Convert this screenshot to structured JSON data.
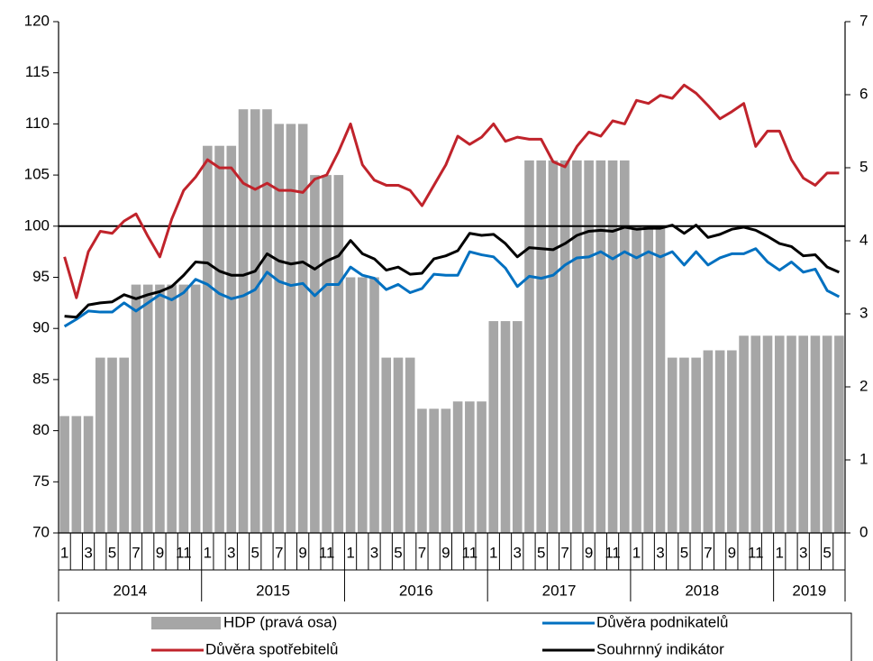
{
  "chart_data": {
    "type": "combo",
    "categories": [
      "1",
      null,
      "3",
      null,
      "5",
      null,
      "7",
      null,
      "9",
      null,
      "11",
      null,
      "1",
      null,
      "3",
      null,
      "5",
      null,
      "7",
      null,
      "9",
      null,
      "11",
      null,
      "1",
      null,
      "3",
      null,
      "5",
      null,
      "7",
      null,
      "9",
      null,
      "11",
      null,
      "1",
      null,
      "3",
      null,
      "5",
      null,
      "7",
      null,
      "9",
      null,
      "11",
      null,
      "1",
      null,
      "3",
      null,
      "5",
      null,
      "7",
      null,
      "9",
      null,
      "11",
      null,
      "1",
      null,
      "3",
      null,
      "5",
      null
    ],
    "groups": [
      "2014",
      "2015",
      "2016",
      "2017",
      "2018",
      "2019"
    ],
    "ylim": [
      70,
      120
    ],
    "yticks": [
      70,
      75,
      80,
      85,
      90,
      95,
      100,
      105,
      110,
      115,
      120
    ],
    "y2lim": [
      0,
      7
    ],
    "y2ticks": [
      0,
      1,
      2,
      3,
      4,
      5,
      6,
      7
    ],
    "reference_line": 100,
    "series": [
      {
        "name": "HDP (pravá osa)",
        "type": "bar",
        "axis": "y2",
        "color": "#a6a6a6",
        "values": [
          1.6,
          1.6,
          1.6,
          2.4,
          2.4,
          2.4,
          3.4,
          3.4,
          3.4,
          3.4,
          3.4,
          3.4,
          5.3,
          5.3,
          5.3,
          5.8,
          5.8,
          5.8,
          5.6,
          5.6,
          5.6,
          4.9,
          4.9,
          4.9,
          3.5,
          3.5,
          3.5,
          2.4,
          2.4,
          2.4,
          1.7,
          1.7,
          1.7,
          1.8,
          1.8,
          1.8,
          2.9,
          2.9,
          2.9,
          5.1,
          5.1,
          5.1,
          5.1,
          5.1,
          5.1,
          5.1,
          5.1,
          5.1,
          4.2,
          4.2,
          4.2,
          2.4,
          2.4,
          2.4,
          2.5,
          2.5,
          2.5,
          2.7,
          2.7,
          2.7,
          2.7,
          2.7,
          2.7,
          2.7,
          2.7,
          2.7
        ]
      },
      {
        "name": "Důvěra podnikatelů",
        "type": "line",
        "color": "#0070c0",
        "values": [
          90.2,
          90.9,
          91.7,
          91.6,
          91.6,
          92.5,
          91.7,
          92.5,
          93.3,
          92.8,
          93.5,
          94.8,
          94.3,
          93.4,
          92.9,
          93.2,
          93.8,
          95.5,
          94.6,
          94.2,
          94.4,
          93.2,
          94.3,
          94.3,
          96,
          95.2,
          94.9,
          93.8,
          94.3,
          93.5,
          93.9,
          95.3,
          95.2,
          95.2,
          97.5,
          97.2,
          97,
          95.9,
          94.1,
          95.1,
          94.9,
          95.2,
          96.2,
          96.9,
          97,
          97.5,
          96.8,
          97.5,
          96.9,
          97.5,
          97,
          97.5,
          96.2,
          97.5,
          96.2,
          96.9,
          97.3,
          97.3,
          97.8,
          96.5,
          95.7,
          96.5,
          95.5,
          95.8,
          93.7,
          93.1
        ]
      },
      {
        "name": "Důvěra spotřebitelů",
        "type": "line",
        "color": "#c0232b",
        "values": [
          97,
          93,
          97.5,
          99.5,
          99.3,
          100.5,
          101.2,
          99,
          97,
          100.7,
          103.5,
          104.8,
          106.5,
          105.7,
          105.7,
          104.2,
          103.6,
          104.2,
          103.5,
          103.5,
          103.3,
          104.6,
          105,
          107.3,
          110,
          106,
          104.5,
          104,
          104,
          103.5,
          102,
          104,
          106,
          108.8,
          108,
          108.7,
          110,
          108.3,
          108.7,
          108.5,
          108.5,
          106.3,
          105.8,
          107.8,
          109.2,
          108.8,
          110.3,
          110,
          112.3,
          112,
          112.8,
          112.5,
          113.8,
          113,
          111.8,
          110.5,
          111.2,
          112,
          107.8,
          109.3,
          109.3,
          106.5,
          104.7,
          104,
          105.2,
          105.2
        ]
      },
      {
        "name": "Souhrnný indikátor",
        "type": "line",
        "color": "#000000",
        "values": [
          91.2,
          91.1,
          92.3,
          92.5,
          92.6,
          93.3,
          92.9,
          93.3,
          93.6,
          94.1,
          95.2,
          96.5,
          96.4,
          95.6,
          95.2,
          95.2,
          95.6,
          97.3,
          96.6,
          96.3,
          96.5,
          95.8,
          96.6,
          97.1,
          98.6,
          97.3,
          96.8,
          95.7,
          96,
          95.3,
          95.4,
          96.8,
          97.1,
          97.6,
          99.3,
          99.1,
          99.2,
          98.3,
          97,
          97.9,
          97.8,
          97.7,
          98.3,
          99.1,
          99.5,
          99.6,
          99.5,
          99.9,
          99.7,
          99.8,
          99.8,
          100.1,
          99.3,
          100.1,
          98.9,
          99.2,
          99.7,
          99.9,
          99.6,
          99,
          98.3,
          98,
          97.1,
          97.2,
          96,
          95.5
        ]
      }
    ]
  }
}
